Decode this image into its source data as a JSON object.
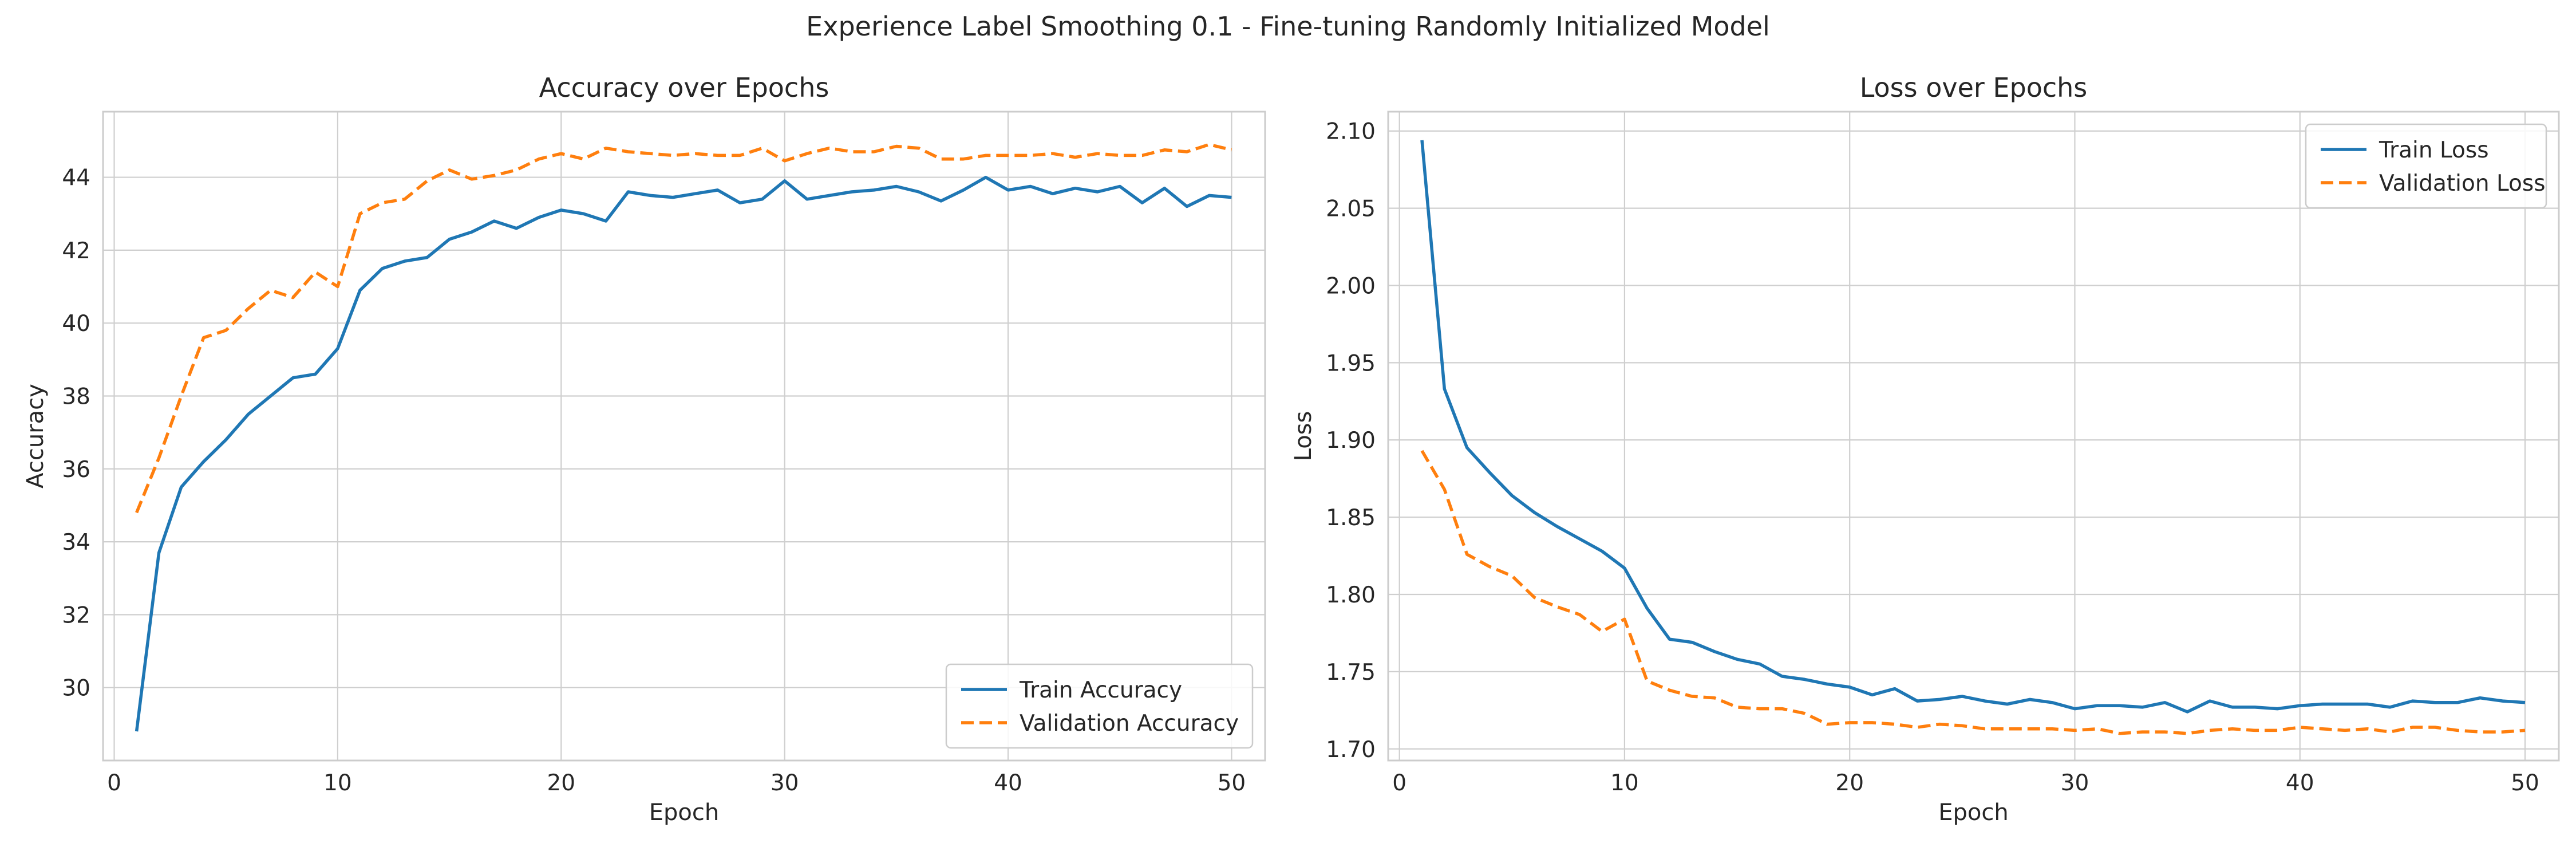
{
  "figure": {
    "suptitle": "Experience Label Smoothing 0.1 - Fine-tuning Randomly Initialized Model"
  },
  "chart_data": [
    {
      "type": "line",
      "title": "Accuracy over Epochs",
      "xlabel": "Epoch",
      "ylabel": "Accuracy",
      "xlim": [
        -0.5,
        51.5
      ],
      "ylim": [
        28.0,
        45.8
      ],
      "xticks": [
        0,
        10,
        20,
        30,
        40,
        50
      ],
      "yticks": [
        30,
        32,
        34,
        36,
        38,
        40,
        42,
        44
      ],
      "tick_decimals": 0,
      "grid": true,
      "legend_position": "lower-right",
      "x": [
        1,
        2,
        3,
        4,
        5,
        6,
        7,
        8,
        9,
        10,
        11,
        12,
        13,
        14,
        15,
        16,
        17,
        18,
        19,
        20,
        21,
        22,
        23,
        24,
        25,
        26,
        27,
        28,
        29,
        30,
        31,
        32,
        33,
        34,
        35,
        36,
        37,
        38,
        39,
        40,
        41,
        42,
        43,
        44,
        45,
        46,
        47,
        48,
        49,
        50
      ],
      "series": [
        {
          "name": "Train Accuracy",
          "color": "#1f77b4",
          "dash": "solid",
          "values": [
            28.8,
            33.7,
            35.5,
            36.2,
            36.8,
            37.5,
            38.0,
            38.5,
            38.6,
            39.3,
            40.9,
            41.5,
            41.7,
            41.8,
            42.3,
            42.5,
            42.8,
            42.6,
            42.9,
            43.1,
            43.0,
            42.8,
            43.6,
            43.5,
            43.45,
            43.55,
            43.65,
            43.3,
            43.4,
            43.9,
            43.4,
            43.5,
            43.6,
            43.65,
            43.75,
            43.6,
            43.35,
            43.65,
            44.0,
            43.65,
            43.75,
            43.55,
            43.7,
            43.6,
            43.75,
            43.3,
            43.7,
            43.2,
            43.5,
            43.45
          ]
        },
        {
          "name": "Validation Accuracy",
          "color": "#ff7f0e",
          "dash": "dashed",
          "values": [
            34.8,
            36.3,
            38.0,
            39.6,
            39.8,
            40.4,
            40.9,
            40.7,
            41.4,
            41.0,
            43.0,
            43.3,
            43.4,
            43.9,
            44.2,
            43.95,
            44.05,
            44.2,
            44.5,
            44.65,
            44.5,
            44.8,
            44.7,
            44.65,
            44.6,
            44.65,
            44.6,
            44.6,
            44.8,
            44.45,
            44.65,
            44.8,
            44.7,
            44.7,
            44.85,
            44.8,
            44.5,
            44.5,
            44.6,
            44.6,
            44.6,
            44.65,
            44.55,
            44.65,
            44.6,
            44.6,
            44.75,
            44.7,
            44.9,
            44.75
          ]
        }
      ]
    },
    {
      "type": "line",
      "title": "Loss over Epochs",
      "xlabel": "Epoch",
      "ylabel": "Loss",
      "xlim": [
        -0.5,
        51.5
      ],
      "ylim": [
        1.6925,
        2.1125
      ],
      "xticks": [
        0,
        10,
        20,
        30,
        40,
        50
      ],
      "yticks": [
        1.7,
        1.75,
        1.8,
        1.85,
        1.9,
        1.95,
        2.0,
        2.05,
        2.1
      ],
      "tick_decimals": 2,
      "grid": true,
      "legend_position": "upper-right",
      "x": [
        1,
        2,
        3,
        4,
        5,
        6,
        7,
        8,
        9,
        10,
        11,
        12,
        13,
        14,
        15,
        16,
        17,
        18,
        19,
        20,
        21,
        22,
        23,
        24,
        25,
        26,
        27,
        28,
        29,
        30,
        31,
        32,
        33,
        34,
        35,
        36,
        37,
        38,
        39,
        40,
        41,
        42,
        43,
        44,
        45,
        46,
        47,
        48,
        49,
        50
      ],
      "series": [
        {
          "name": "Train Loss",
          "color": "#1f77b4",
          "dash": "solid",
          "values": [
            2.094,
            1.933,
            1.895,
            1.879,
            1.864,
            1.853,
            1.844,
            1.836,
            1.828,
            1.817,
            1.791,
            1.771,
            1.769,
            1.763,
            1.758,
            1.755,
            1.747,
            1.745,
            1.742,
            1.74,
            1.735,
            1.739,
            1.731,
            1.732,
            1.734,
            1.731,
            1.729,
            1.732,
            1.73,
            1.726,
            1.728,
            1.728,
            1.727,
            1.73,
            1.724,
            1.731,
            1.727,
            1.727,
            1.726,
            1.728,
            1.729,
            1.729,
            1.729,
            1.727,
            1.731,
            1.73,
            1.73,
            1.733,
            1.731,
            1.73
          ]
        },
        {
          "name": "Validation Loss",
          "color": "#ff7f0e",
          "dash": "dashed",
          "values": [
            1.893,
            1.868,
            1.826,
            1.818,
            1.812,
            1.798,
            1.792,
            1.787,
            1.776,
            1.784,
            1.744,
            1.738,
            1.734,
            1.733,
            1.727,
            1.726,
            1.726,
            1.723,
            1.716,
            1.717,
            1.717,
            1.716,
            1.714,
            1.716,
            1.715,
            1.713,
            1.713,
            1.713,
            1.713,
            1.712,
            1.713,
            1.71,
            1.711,
            1.711,
            1.71,
            1.712,
            1.713,
            1.712,
            1.712,
            1.714,
            1.713,
            1.712,
            1.713,
            1.711,
            1.714,
            1.714,
            1.712,
            1.711,
            1.711,
            1.712
          ]
        }
      ]
    }
  ]
}
